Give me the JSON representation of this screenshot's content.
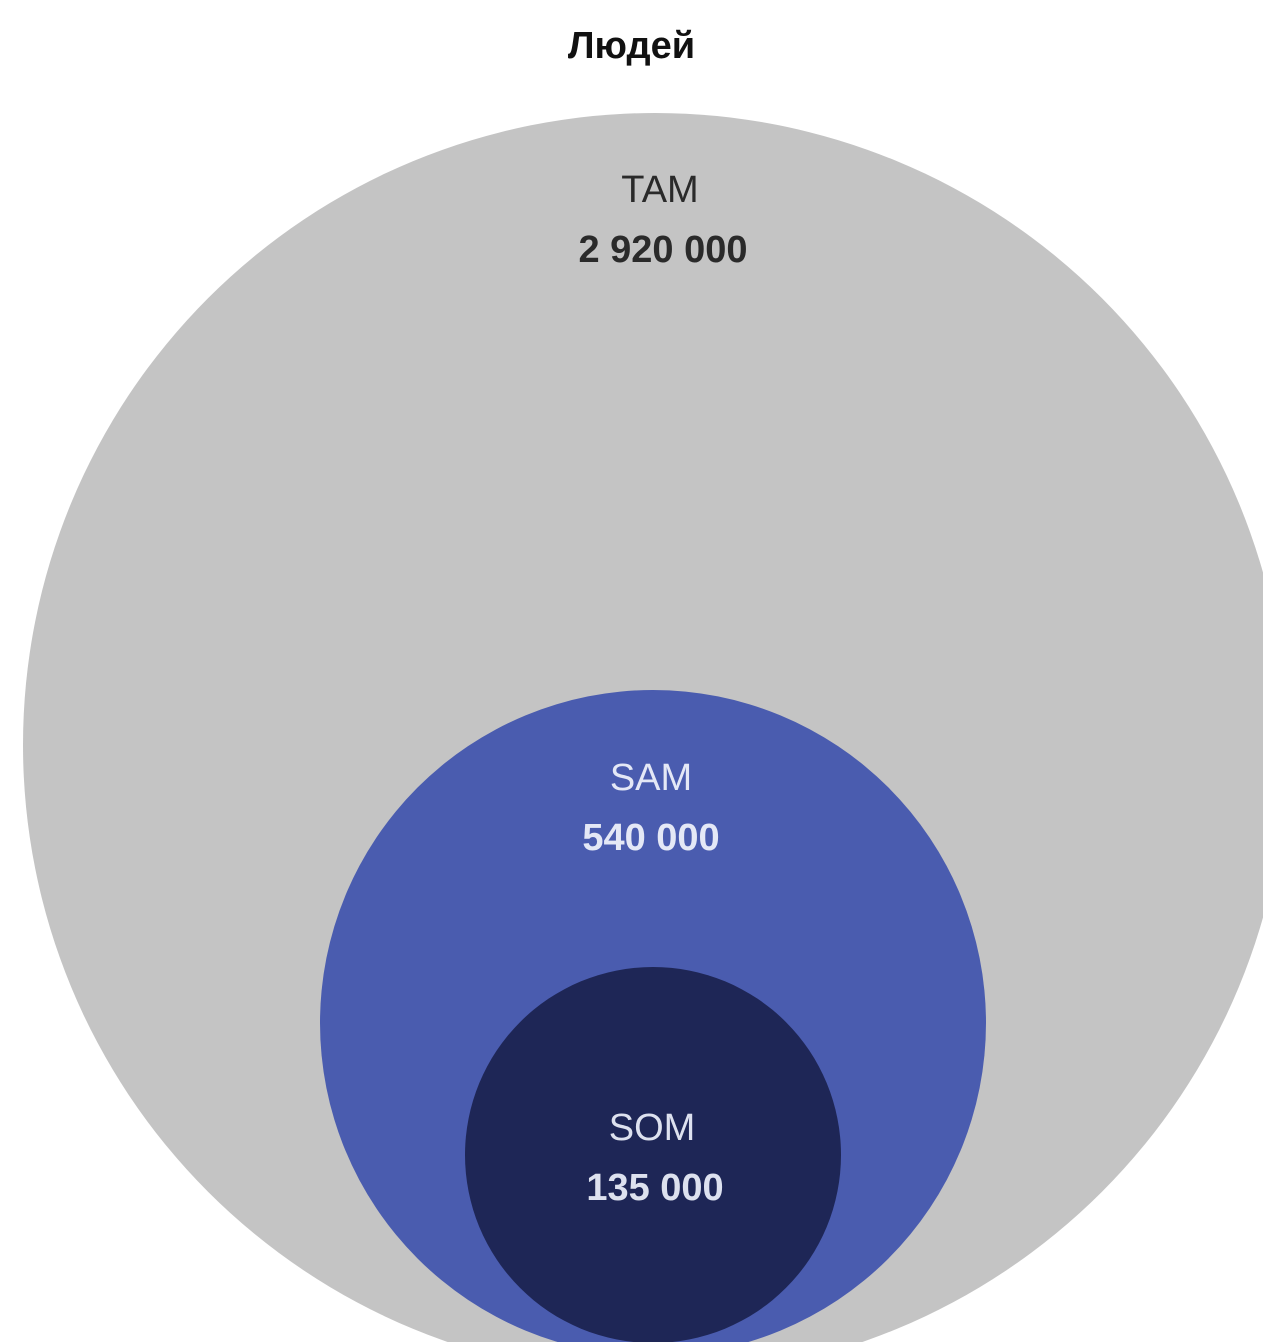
{
  "title": "Людей",
  "circles": [
    {
      "label": "TAM",
      "value": "2 920 000",
      "fill": "#c4c4c4",
      "text_color": "#2a2a2a"
    },
    {
      "label": "SAM",
      "value": "540 000",
      "fill": "#4a5caf",
      "text_color": "#e4e8f6"
    },
    {
      "label": "SOM",
      "value": "135 000",
      "fill": "#1e2656",
      "text_color": "#dde1ef"
    }
  ]
}
